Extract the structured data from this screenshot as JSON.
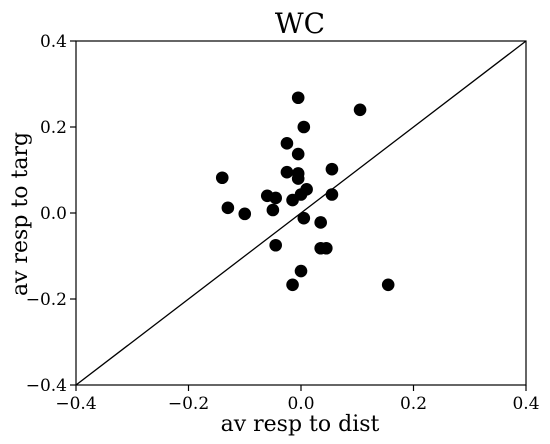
{
  "chart_data": {
    "type": "scatter",
    "title": "WC",
    "xlabel": "av resp to dist",
    "ylabel": "av resp to targ",
    "xlim": [
      -0.4,
      0.4
    ],
    "ylim": [
      -0.4,
      0.4
    ],
    "xticks": [
      -0.4,
      -0.2,
      0.0,
      0.2,
      0.4
    ],
    "yticks": [
      -0.4,
      -0.2,
      0.0,
      0.2,
      0.4
    ],
    "xtick_labels": [
      "−0.4",
      "−0.2",
      "0.0",
      "0.2",
      "0.4"
    ],
    "ytick_labels": [
      "−0.4",
      "−0.2",
      "0.0",
      "0.2",
      "0.4"
    ],
    "reference_line": {
      "from": [
        -0.4,
        -0.4
      ],
      "to": [
        0.4,
        0.4
      ]
    },
    "grid": false,
    "marker_color": "#000000",
    "series": [
      {
        "points": [
          {
            "x": -0.005,
            "y": 0.268
          },
          {
            "x": 0.105,
            "y": 0.24
          },
          {
            "x": 0.005,
            "y": 0.2
          },
          {
            "x": -0.025,
            "y": 0.162
          },
          {
            "x": -0.005,
            "y": 0.137
          },
          {
            "x": 0.055,
            "y": 0.102
          },
          {
            "x": -0.025,
            "y": 0.095
          },
          {
            "x": -0.005,
            "y": 0.092
          },
          {
            "x": -0.005,
            "y": 0.08
          },
          {
            "x": -0.14,
            "y": 0.082
          },
          {
            "x": 0.01,
            "y": 0.055
          },
          {
            "x": -0.06,
            "y": 0.04
          },
          {
            "x": 0.0,
            "y": 0.043
          },
          {
            "x": 0.055,
            "y": 0.043
          },
          {
            "x": -0.045,
            "y": 0.035
          },
          {
            "x": -0.015,
            "y": 0.03
          },
          {
            "x": -0.13,
            "y": 0.012
          },
          {
            "x": -0.05,
            "y": 0.007
          },
          {
            "x": -0.1,
            "y": -0.002
          },
          {
            "x": 0.005,
            "y": -0.012
          },
          {
            "x": 0.035,
            "y": -0.022
          },
          {
            "x": -0.045,
            "y": -0.075
          },
          {
            "x": 0.035,
            "y": -0.082
          },
          {
            "x": 0.045,
            "y": -0.082
          },
          {
            "x": 0.0,
            "y": -0.135
          },
          {
            "x": -0.015,
            "y": -0.167
          },
          {
            "x": 0.155,
            "y": -0.167
          }
        ]
      }
    ]
  }
}
